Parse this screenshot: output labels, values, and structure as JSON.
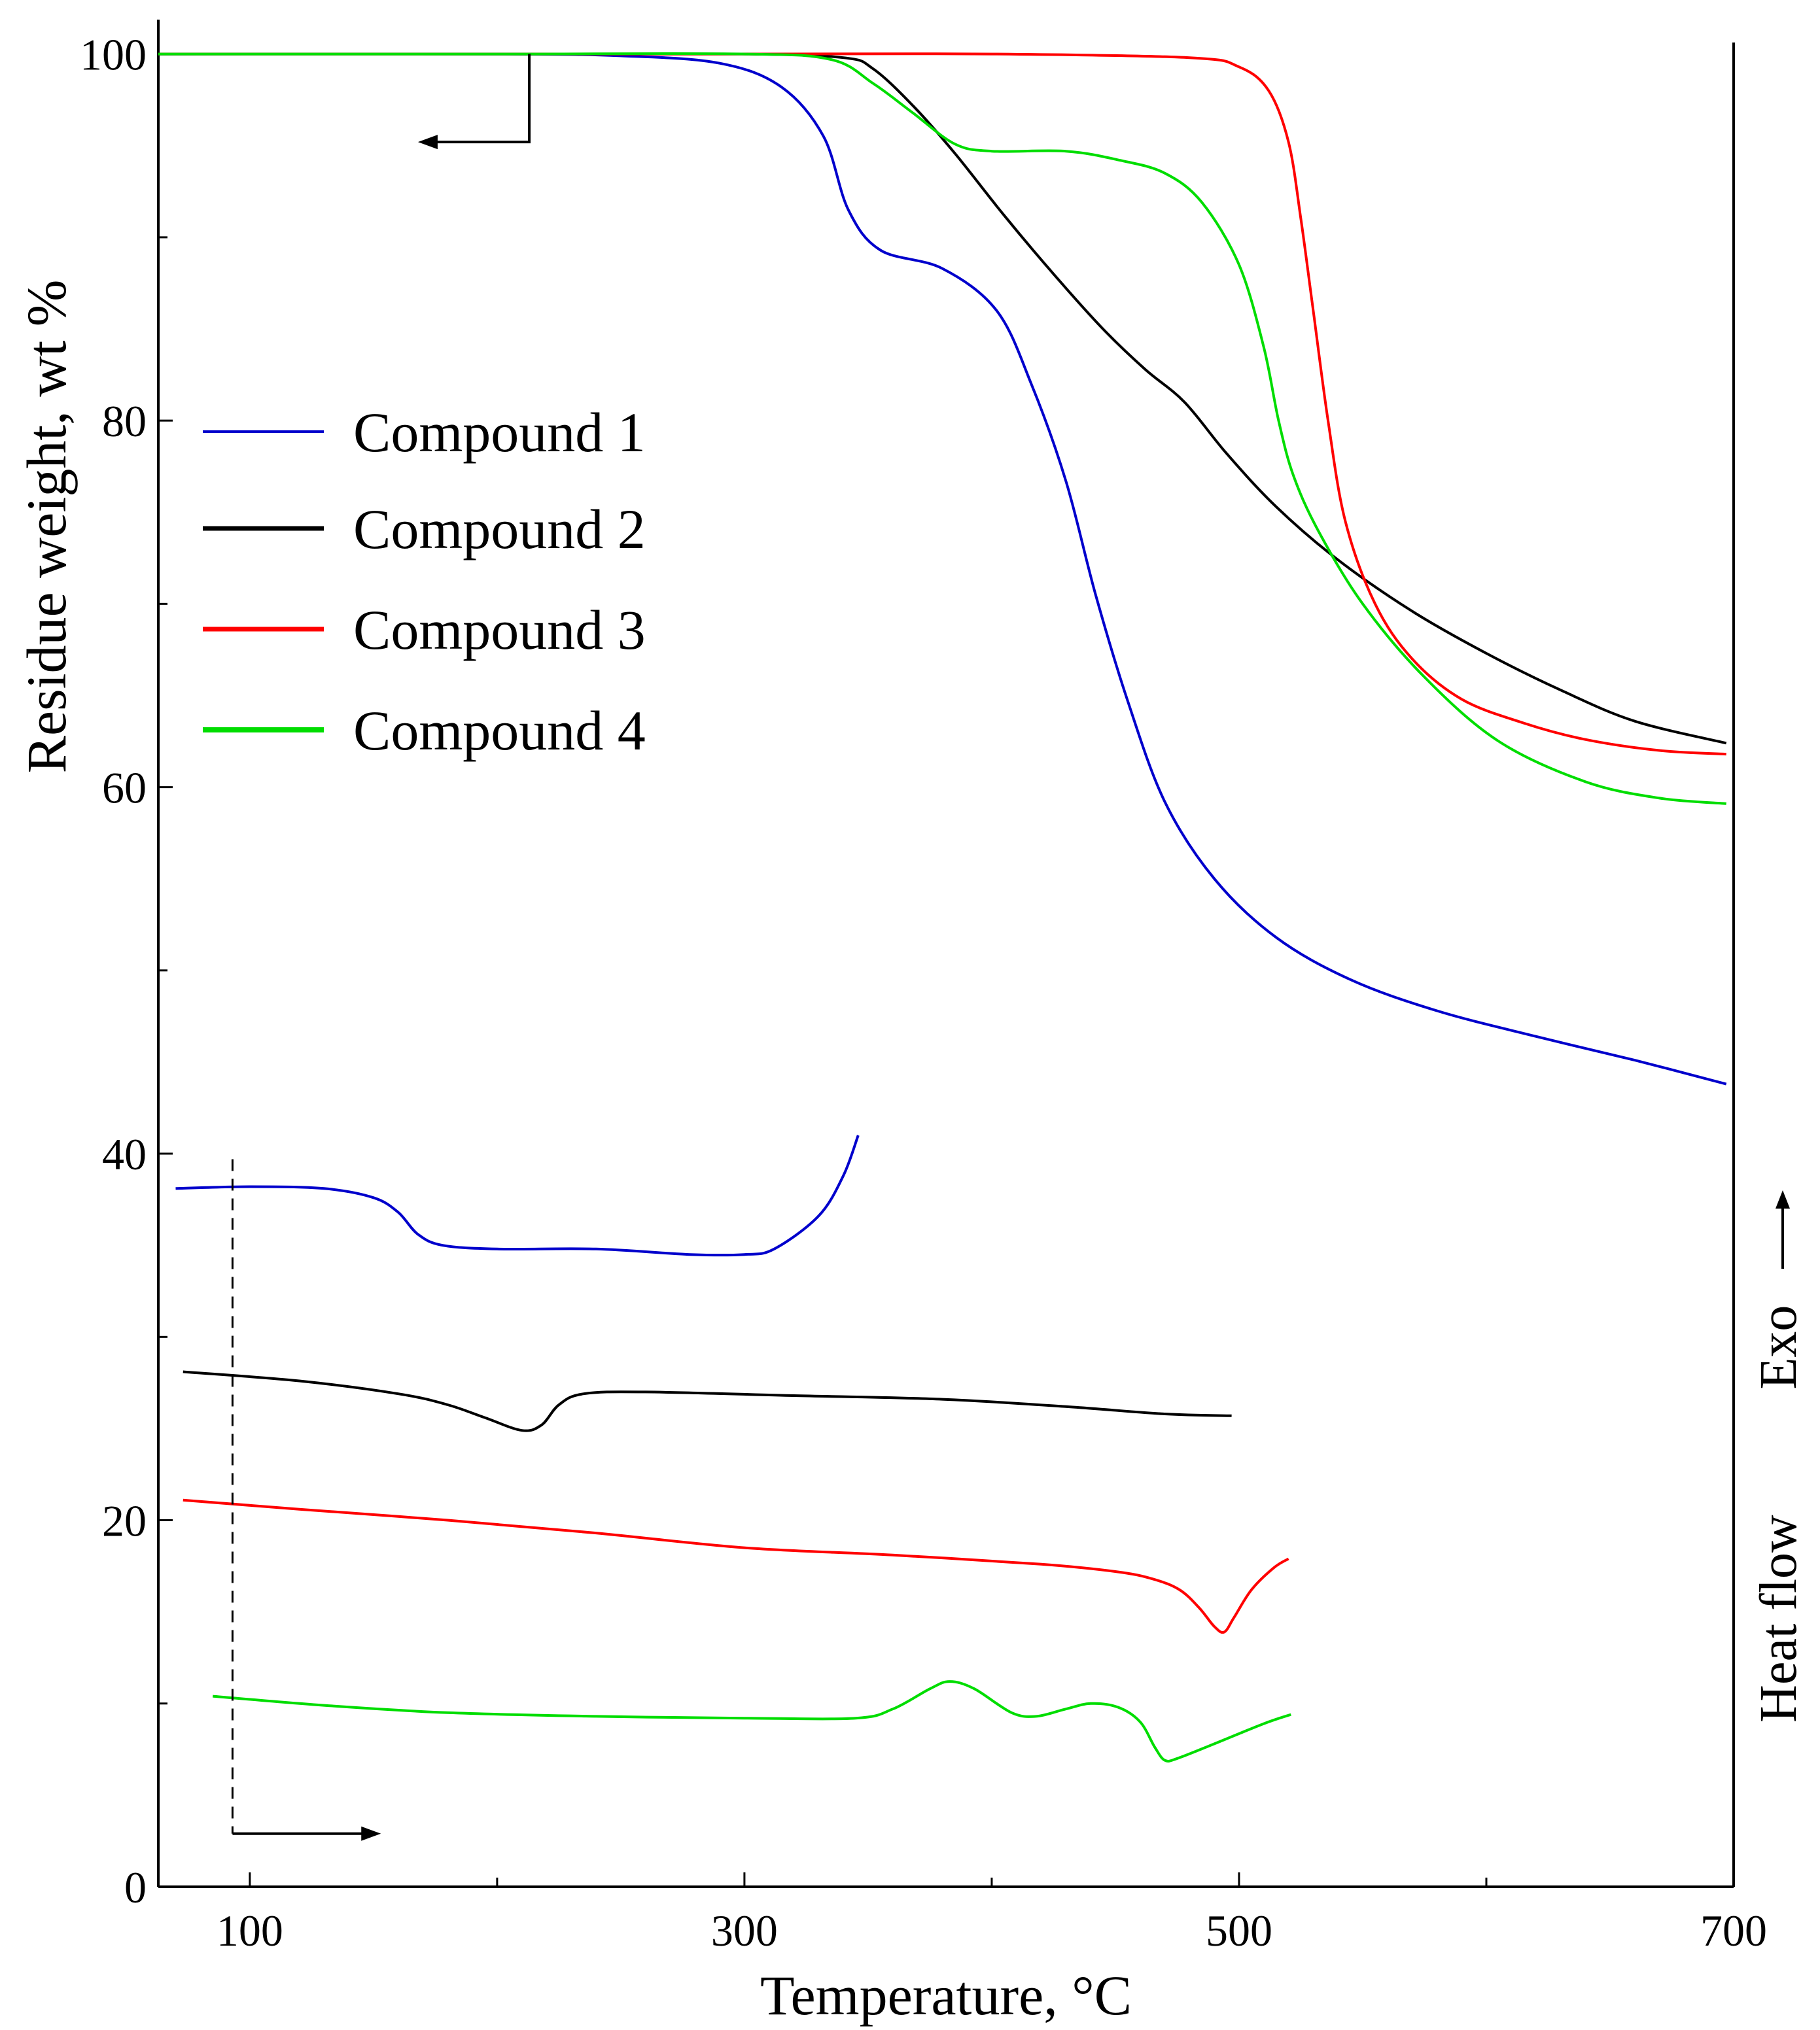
{
  "chart_data": {
    "type": "line",
    "xlabel": "Temperature, °C",
    "ylabel": "Residue weight, wt %",
    "right_label": "Heat flow",
    "right_label_exo": "Exo",
    "xlim": [
      63,
      700
    ],
    "ylim": [
      0,
      101.7
    ],
    "x_ticks": [
      100,
      300,
      500,
      700
    ],
    "x_minor_ticks": [
      200,
      400,
      600
    ],
    "y_ticks": [
      0,
      20,
      40,
      60,
      80,
      100
    ],
    "y_minor_ticks": [
      10,
      30,
      50,
      70,
      90
    ],
    "grid": false,
    "legend_position": "upper-left",
    "tga_axis_arrow": {
      "corner": [
        213,
        100
      ],
      "tail_y": 95.2,
      "head_x": 168
    },
    "dsc_axis_arrow": {
      "dash_x": 93,
      "dash_y": [
        39.7,
        2.9
      ],
      "head_x": 153
    },
    "series": [
      {
        "name": "Compound 1",
        "color": "#0000cc",
        "tga": [
          [
            63,
            100
          ],
          [
            200,
            100
          ],
          [
            250,
            99.9
          ],
          [
            290,
            99.5
          ],
          [
            315,
            98.2
          ],
          [
            332,
            95.5
          ],
          [
            342,
            91.5
          ],
          [
            355,
            89.3
          ],
          [
            380,
            88.3
          ],
          [
            402,
            86
          ],
          [
            416,
            82
          ],
          [
            430,
            76.7
          ],
          [
            442,
            70.5
          ],
          [
            455,
            64.7
          ],
          [
            470,
            59.2
          ],
          [
            490,
            55
          ],
          [
            515,
            51.8
          ],
          [
            545,
            49.5
          ],
          [
            580,
            47.8
          ],
          [
            620,
            46.4
          ],
          [
            660,
            45.1
          ],
          [
            697,
            43.8
          ]
        ],
        "dsc": [
          [
            70,
            38.1
          ],
          [
            100,
            38.2
          ],
          [
            130,
            38.1
          ],
          [
            150,
            37.6
          ],
          [
            160,
            36.8
          ],
          [
            168,
            35.6
          ],
          [
            178,
            35
          ],
          [
            200,
            34.8
          ],
          [
            240,
            34.8
          ],
          [
            278,
            34.5
          ],
          [
            300,
            34.5
          ],
          [
            312,
            34.8
          ],
          [
            330,
            36.6
          ],
          [
            340,
            38.8
          ],
          [
            346,
            41
          ]
        ]
      },
      {
        "name": "Compound 2",
        "color": "#000000",
        "tga": [
          [
            63,
            100
          ],
          [
            200,
            100
          ],
          [
            300,
            100
          ],
          [
            340,
            99.8
          ],
          [
            352,
            99.2
          ],
          [
            368,
            97.2
          ],
          [
            385,
            94.6
          ],
          [
            405,
            91.2
          ],
          [
            425,
            88
          ],
          [
            445,
            85
          ],
          [
            462,
            82.8
          ],
          [
            478,
            81
          ],
          [
            495,
            78.2
          ],
          [
            515,
            75.3
          ],
          [
            540,
            72.4
          ],
          [
            570,
            69.6
          ],
          [
            600,
            67.3
          ],
          [
            630,
            65.3
          ],
          [
            660,
            63.6
          ],
          [
            697,
            62.4
          ]
        ],
        "dsc": [
          [
            73,
            28.1
          ],
          [
            120,
            27.6
          ],
          [
            160,
            26.9
          ],
          [
            180,
            26.3
          ],
          [
            195,
            25.6
          ],
          [
            210,
            24.9
          ],
          [
            218,
            25.2
          ],
          [
            225,
            26.3
          ],
          [
            235,
            26.9
          ],
          [
            260,
            27
          ],
          [
            320,
            26.8
          ],
          [
            380,
            26.6
          ],
          [
            430,
            26.2
          ],
          [
            470,
            25.8
          ],
          [
            497,
            25.7
          ]
        ]
      },
      {
        "name": "Compound 3",
        "color": "#ff0000",
        "tga": [
          [
            63,
            100
          ],
          [
            300,
            100
          ],
          [
            400,
            100
          ],
          [
            480,
            99.8
          ],
          [
            500,
            99.3
          ],
          [
            512,
            98
          ],
          [
            520,
            95.2
          ],
          [
            525,
            91
          ],
          [
            530,
            86
          ],
          [
            536,
            80
          ],
          [
            543,
            74.5
          ],
          [
            555,
            70
          ],
          [
            570,
            67
          ],
          [
            590,
            64.8
          ],
          [
            615,
            63.5
          ],
          [
            640,
            62.6
          ],
          [
            670,
            62
          ],
          [
            697,
            61.8
          ]
        ],
        "dsc": [
          [
            73,
            21.1
          ],
          [
            120,
            20.6
          ],
          [
            180,
            20
          ],
          [
            240,
            19.3
          ],
          [
            300,
            18.5
          ],
          [
            360,
            18.1
          ],
          [
            420,
            17.6
          ],
          [
            450,
            17.2
          ],
          [
            465,
            16.8
          ],
          [
            476,
            16.2
          ],
          [
            484,
            15.2
          ],
          [
            490,
            14.2
          ],
          [
            494,
            13.9
          ],
          [
            498,
            14.7
          ],
          [
            505,
            16.2
          ],
          [
            514,
            17.4
          ],
          [
            520,
            17.9
          ]
        ]
      },
      {
        "name": "Compound 4",
        "color": "#00dd00",
        "tga": [
          [
            63,
            100
          ],
          [
            200,
            100
          ],
          [
            300,
            100
          ],
          [
            335,
            99.7
          ],
          [
            352,
            98.4
          ],
          [
            368,
            96.8
          ],
          [
            385,
            95.1
          ],
          [
            400,
            94.7
          ],
          [
            430,
            94.7
          ],
          [
            452,
            94.2
          ],
          [
            470,
            93.5
          ],
          [
            485,
            91.9
          ],
          [
            500,
            88.5
          ],
          [
            510,
            84
          ],
          [
            516,
            80
          ],
          [
            522,
            77
          ],
          [
            532,
            74
          ],
          [
            550,
            70
          ],
          [
            575,
            66
          ],
          [
            605,
            62.5
          ],
          [
            640,
            60.3
          ],
          [
            670,
            59.4
          ],
          [
            697,
            59.1
          ]
        ],
        "dsc": [
          [
            85,
            10.4
          ],
          [
            130,
            9.9
          ],
          [
            180,
            9.5
          ],
          [
            240,
            9.3
          ],
          [
            300,
            9.2
          ],
          [
            345,
            9.2
          ],
          [
            360,
            9.7
          ],
          [
            375,
            10.8
          ],
          [
            383,
            11.2
          ],
          [
            393,
            10.8
          ],
          [
            408,
            9.5
          ],
          [
            418,
            9.3
          ],
          [
            430,
            9.7
          ],
          [
            440,
            10
          ],
          [
            451,
            9.8
          ],
          [
            460,
            9
          ],
          [
            466,
            7.6
          ],
          [
            470,
            6.9
          ],
          [
            475,
            7
          ],
          [
            490,
            7.8
          ],
          [
            510,
            8.9
          ],
          [
            521,
            9.4
          ]
        ]
      }
    ]
  }
}
